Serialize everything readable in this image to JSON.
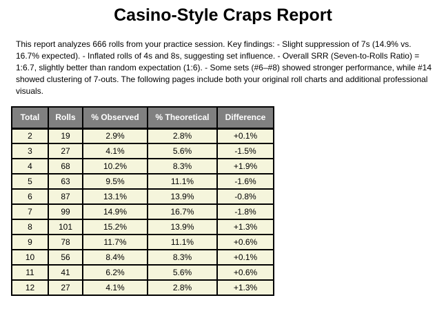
{
  "report": {
    "title": "Casino-Style Craps Report",
    "summary": "This report analyzes 666 rolls from your practice session. Key findings: - Slight suppression of 7s (14.9% vs. 16.7% expected). - Inflated rolls of 4s and 8s, suggesting set influence. - Overall SRR (Seven-to-Rolls Ratio) = 1:6.7, slightly better than random expectation (1:6). - Some sets (#6–#8) showed stronger performance, while #14 showed clustering of 7-outs. The following pages include both your original roll charts and additional professional visuals."
  },
  "table": {
    "columns": [
      "Total",
      "Rolls",
      "% Observed",
      "% Theoretical",
      "Difference"
    ],
    "rows": [
      [
        "2",
        "19",
        "2.9%",
        "2.8%",
        "+0.1%"
      ],
      [
        "3",
        "27",
        "4.1%",
        "5.6%",
        "-1.5%"
      ],
      [
        "4",
        "68",
        "10.2%",
        "8.3%",
        "+1.9%"
      ],
      [
        "5",
        "63",
        "9.5%",
        "11.1%",
        "-1.6%"
      ],
      [
        "6",
        "87",
        "13.1%",
        "13.9%",
        "-0.8%"
      ],
      [
        "7",
        "99",
        "14.9%",
        "16.7%",
        "-1.8%"
      ],
      [
        "8",
        "101",
        "15.2%",
        "13.9%",
        "+1.3%"
      ],
      [
        "9",
        "78",
        "11.7%",
        "11.1%",
        "+0.6%"
      ],
      [
        "10",
        "56",
        "8.4%",
        "8.3%",
        "+0.1%"
      ],
      [
        "11",
        "41",
        "6.2%",
        "5.6%",
        "+0.6%"
      ],
      [
        "12",
        "27",
        "4.1%",
        "2.8%",
        "+1.3%"
      ]
    ]
  },
  "colors": {
    "header_bg": "#808080",
    "header_text": "#ffffff",
    "row_bg": "#f5f5dc",
    "border": "#000000",
    "text": "#000000"
  }
}
